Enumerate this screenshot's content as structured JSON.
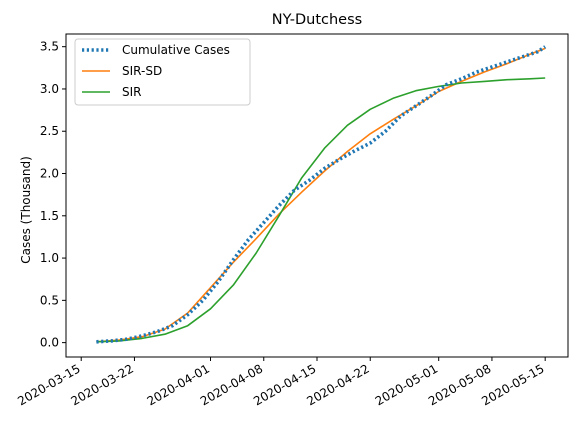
{
  "chart_data": {
    "type": "line",
    "title": "NY-Dutchess",
    "xlabel": "",
    "ylabel": "Cases (Thousand)",
    "x_type": "date",
    "xlim": [
      "2020-03-13",
      "2020-05-18"
    ],
    "ylim": [
      -0.17,
      3.65
    ],
    "x_ticks": [
      "2020-03-15",
      "2020-03-22",
      "2020-04-01",
      "2020-04-08",
      "2020-04-15",
      "2020-04-22",
      "2020-05-01",
      "2020-05-08",
      "2020-05-15"
    ],
    "y_ticks": [
      0.0,
      0.5,
      1.0,
      1.5,
      2.0,
      2.5,
      3.0,
      3.5
    ],
    "y_tick_labels": [
      "0.0",
      "0.5",
      "1.0",
      "1.5",
      "2.0",
      "2.5",
      "3.0",
      "3.5"
    ],
    "grid": false,
    "legend_position": "top-left",
    "series": [
      {
        "name": "Cumulative Cases",
        "style": "dotted",
        "color": "#1f77b4",
        "x": [
          "2020-03-17",
          "2020-03-19",
          "2020-03-21",
          "2020-03-23",
          "2020-03-25",
          "2020-03-27",
          "2020-03-29",
          "2020-03-31",
          "2020-04-02",
          "2020-04-04",
          "2020-04-06",
          "2020-04-08",
          "2020-04-10",
          "2020-04-12",
          "2020-04-14",
          "2020-04-16",
          "2020-04-18",
          "2020-04-20",
          "2020-04-22",
          "2020-04-24",
          "2020-04-26",
          "2020-04-28",
          "2020-04-30",
          "2020-05-02",
          "2020-05-04",
          "2020-05-06",
          "2020-05-08",
          "2020-05-10",
          "2020-05-12",
          "2020-05-14",
          "2020-05-15"
        ],
        "y": [
          0.01,
          0.02,
          0.04,
          0.08,
          0.13,
          0.2,
          0.33,
          0.5,
          0.72,
          0.98,
          1.22,
          1.42,
          1.62,
          1.8,
          1.92,
          2.06,
          2.17,
          2.27,
          2.36,
          2.5,
          2.68,
          2.8,
          2.92,
          3.05,
          3.12,
          3.2,
          3.26,
          3.32,
          3.38,
          3.44,
          3.5
        ]
      },
      {
        "name": "SIR-SD",
        "style": "solid",
        "color": "#ff7f0e",
        "x": [
          "2020-03-17",
          "2020-03-20",
          "2020-03-23",
          "2020-03-26",
          "2020-03-29",
          "2020-04-01",
          "2020-04-04",
          "2020-04-07",
          "2020-04-10",
          "2020-04-13",
          "2020-04-16",
          "2020-04-19",
          "2020-04-22",
          "2020-04-25",
          "2020-04-28",
          "2020-05-01",
          "2020-05-04",
          "2020-05-07",
          "2020-05-10",
          "2020-05-13",
          "2020-05-15"
        ],
        "y": [
          0.01,
          0.03,
          0.07,
          0.16,
          0.35,
          0.65,
          0.95,
          1.23,
          1.52,
          1.78,
          2.03,
          2.26,
          2.47,
          2.64,
          2.8,
          2.97,
          3.09,
          3.2,
          3.3,
          3.41,
          3.48
        ]
      },
      {
        "name": "SIR",
        "style": "solid",
        "color": "#2ca02c",
        "x": [
          "2020-03-17",
          "2020-03-20",
          "2020-03-23",
          "2020-03-26",
          "2020-03-29",
          "2020-04-01",
          "2020-04-04",
          "2020-04-07",
          "2020-04-10",
          "2020-04-13",
          "2020-04-16",
          "2020-04-19",
          "2020-04-22",
          "2020-04-25",
          "2020-04-28",
          "2020-05-01",
          "2020-05-04",
          "2020-05-07",
          "2020-05-10",
          "2020-05-13",
          "2020-05-15"
        ],
        "y": [
          0.01,
          0.02,
          0.05,
          0.1,
          0.2,
          0.4,
          0.68,
          1.06,
          1.5,
          1.95,
          2.3,
          2.57,
          2.76,
          2.89,
          2.98,
          3.03,
          3.07,
          3.09,
          3.11,
          3.12,
          3.13
        ]
      }
    ]
  }
}
